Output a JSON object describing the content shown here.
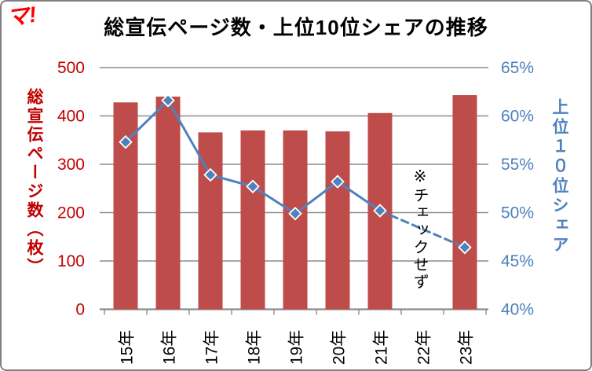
{
  "logo": {
    "text": "マ!",
    "color": "#FF0000"
  },
  "chart_data": {
    "type": "combo-bar-line",
    "title": "総宣伝ページ数・上位10位シェアの推移",
    "categories": [
      "15年",
      "16年",
      "17年",
      "18年",
      "19年",
      "20年",
      "21年",
      "22年",
      "23年"
    ],
    "series": [
      {
        "name": "総宣伝ページ数（枚）",
        "type": "bar",
        "axis": "left",
        "color": "#BE4C4B",
        "values": [
          428,
          440,
          366,
          370,
          370,
          368,
          406,
          null,
          443
        ]
      },
      {
        "name": "上位10位シェア",
        "type": "line",
        "axis": "right",
        "color": "#4F81BD",
        "marker": "diamond",
        "marker_fill": "#4F81BD",
        "marker_stroke": "#FFFFFF",
        "gap_segment_style": "dashed",
        "values": [
          57.3,
          61.6,
          53.9,
          52.7,
          49.9,
          53.2,
          50.2,
          null,
          46.4
        ]
      }
    ],
    "left_axis": {
      "title": "総宣伝ページ数（枚）",
      "min": 0,
      "max": 500,
      "step": 100,
      "tick_labels": [
        "0",
        "100",
        "200",
        "300",
        "400",
        "500"
      ],
      "color": "#C00000"
    },
    "right_axis": {
      "title": "上位１０位シェア",
      "min": 40,
      "max": 65,
      "step": 5,
      "tick_labels": [
        "40%",
        "45%",
        "50%",
        "55%",
        "60%",
        "65%"
      ],
      "color": "#4F81BD"
    },
    "x_axis": {
      "label_rotation": -90,
      "label_color": "#000000"
    },
    "annotation": {
      "text": "※チェックせず",
      "category_index": 7,
      "color": "#000000"
    },
    "grid": {
      "show": true,
      "color": "#8C8C8C"
    },
    "legend": "none",
    "styles": {
      "background": "#FFFFFF",
      "frame_border": "#808080",
      "axis_color": "#8C8C8C"
    }
  }
}
